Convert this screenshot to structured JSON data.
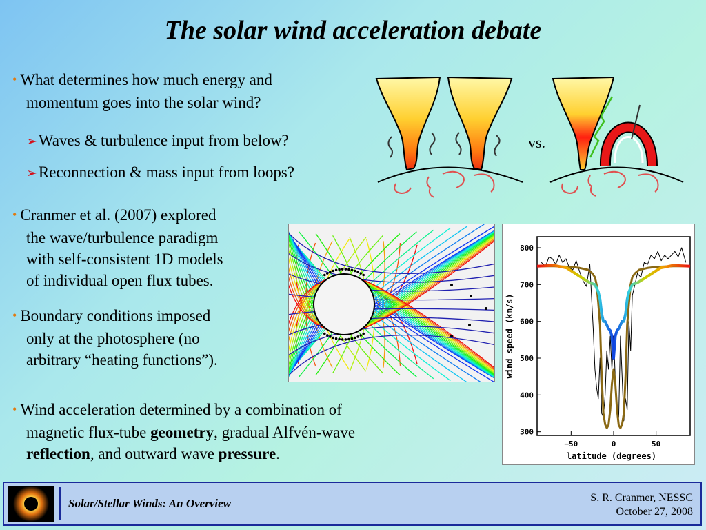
{
  "title": "The solar wind acceleration debate",
  "bullets": {
    "b1_line1": "What determines how much energy and",
    "b1_line2": "momentum goes into the solar wind?",
    "sub1": "Waves & turbulence input from below?",
    "sub2": "Reconnection & mass input from loops?",
    "b2_line1": "Cranmer et al. (2007) explored",
    "b2_line2": "the wave/turbulence paradigm",
    "b2_line3": "with self-consistent 1D models",
    "b2_line4": "of individual open flux tubes.",
    "b3_line1": "Boundary conditions imposed",
    "b3_line2": "only at the photosphere (no",
    "b3_line3": "arbitrary “heating functions”).",
    "b4_line1": "Wind acceleration determined by a combination of",
    "b4_l2_pre": "magnetic flux-tube ",
    "b4_l2_bold": "geometry",
    "b4_l2_post": ", gradual Alfvén-wave",
    "b4_l3_bold1": "reflection",
    "b4_l3_mid": ", and outward wave ",
    "b4_l3_bold2": "pressure",
    "b4_l3_end": "."
  },
  "vs_label": "vs.",
  "chart_data": {
    "type": "line",
    "xlabel": "latitude (degrees)",
    "ylabel": "wind speed (km/s)",
    "xlim": [
      -90,
      90
    ],
    "ylim": [
      290,
      830
    ],
    "xticks": [
      "−50",
      "0",
      "50"
    ],
    "yticks": [
      "300",
      "400",
      "500",
      "600",
      "700",
      "800"
    ],
    "series": [
      {
        "color": "#000000",
        "x": [
          -85,
          -80,
          -76,
          -72,
          -68,
          -64,
          -60,
          -56,
          -52,
          -48,
          -44,
          -40,
          -36,
          -32,
          -28,
          -24,
          -22,
          -20,
          -18,
          -16,
          -14,
          -12,
          -10,
          -8,
          -6,
          -4,
          -2,
          0,
          2,
          4,
          6,
          8,
          10,
          12,
          14,
          16,
          18,
          20,
          22,
          24,
          28,
          32,
          36,
          40,
          44,
          48,
          52,
          56,
          60,
          64,
          68,
          72,
          76,
          80,
          85
        ],
        "y": [
          760,
          750,
          775,
          770,
          755,
          780,
          760,
          770,
          745,
          740,
          765,
          735,
          710,
          695,
          755,
          580,
          470,
          420,
          390,
          500,
          350,
          340,
          400,
          520,
          470,
          560,
          470,
          560,
          440,
          360,
          340,
          560,
          450,
          330,
          390,
          360,
          600,
          520,
          670,
          690,
          730,
          720,
          760,
          755,
          780,
          770,
          790,
          765,
          780,
          770,
          780,
          790,
          775,
          800,
          760
        ]
      },
      {
        "color": "#8b6914",
        "x": [
          -90,
          -70,
          -50,
          -40,
          -30,
          -25,
          -22,
          -20,
          -18,
          -16,
          -14,
          -12,
          -10,
          -8,
          -6,
          -4,
          -2,
          0,
          2,
          4,
          6,
          8,
          10,
          12,
          14,
          16,
          18,
          20,
          22,
          25,
          30,
          40,
          50,
          70,
          90
        ],
        "y": [
          750,
          750,
          748,
          745,
          740,
          730,
          720,
          700,
          650,
          590,
          450,
          350,
          320,
          310,
          318,
          360,
          430,
          470,
          430,
          360,
          318,
          310,
          320,
          350,
          450,
          590,
          650,
          700,
          720,
          730,
          740,
          745,
          748,
          750,
          750
        ]
      },
      {
        "color": "rainbow",
        "x": [
          -90,
          -70,
          -55,
          -45,
          -35,
          -28,
          -22,
          -18,
          -16,
          -14,
          -12,
          -10,
          -8,
          -6,
          -4,
          -2,
          0,
          2,
          4,
          6,
          8,
          10,
          12,
          14,
          16,
          18,
          22,
          28,
          35,
          45,
          55,
          70,
          90
        ],
        "y": [
          750,
          752,
          745,
          730,
          715,
          705,
          700,
          680,
          660,
          620,
          600,
          600,
          590,
          580,
          575,
          560,
          500,
          560,
          575,
          580,
          590,
          600,
          600,
          620,
          660,
          680,
          700,
          705,
          715,
          730,
          745,
          752,
          750
        ]
      }
    ]
  },
  "footer": {
    "left_title": "Solar/Stellar Winds: An Overview",
    "right_line1": "S. R. Cranmer, NESSC",
    "right_line2": "October 27, 2008"
  }
}
